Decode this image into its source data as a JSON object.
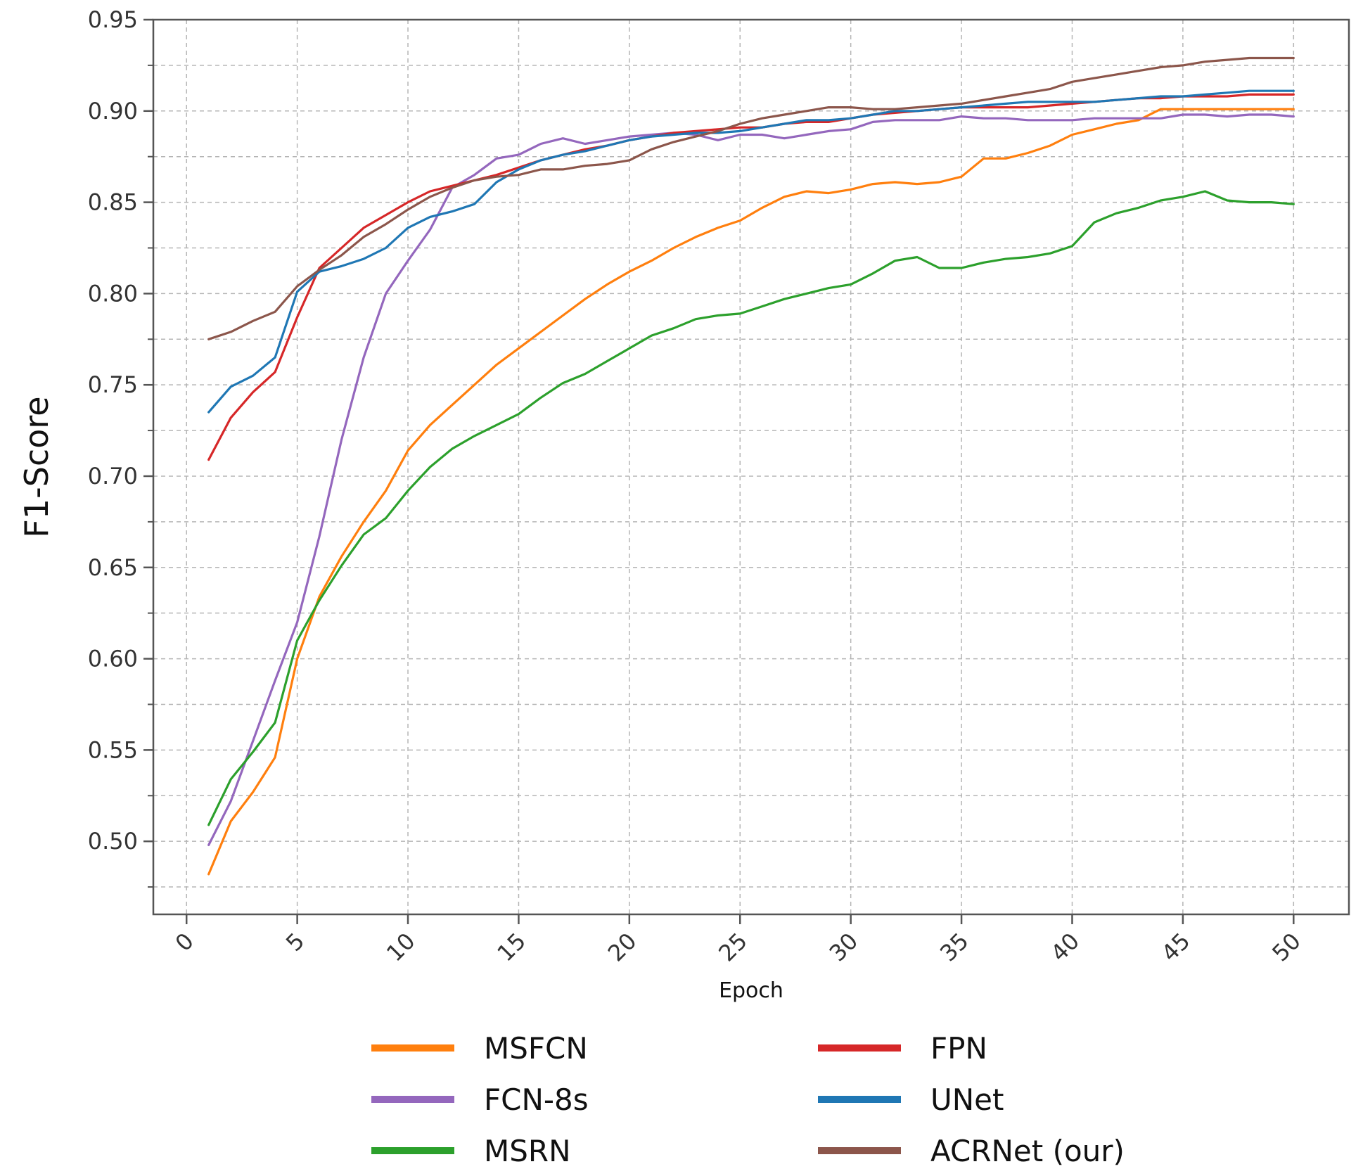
{
  "chart_data": {
    "type": "line",
    "title": "",
    "xlabel": "Epoch",
    "ylabel": "F1-Score",
    "xlim": [
      -1.5,
      52.5
    ],
    "ylim": [
      0.46,
      0.95
    ],
    "grid": true,
    "legend_position": "bottom",
    "x_ticks": [
      {
        "value": 0,
        "label": "0"
      },
      {
        "value": 5,
        "label": "5"
      },
      {
        "value": 10,
        "label": "10"
      },
      {
        "value": 15,
        "label": "15"
      },
      {
        "value": 20,
        "label": "20"
      },
      {
        "value": 25,
        "label": "25"
      },
      {
        "value": 30,
        "label": "30"
      },
      {
        "value": 35,
        "label": "35"
      },
      {
        "value": 40,
        "label": "40"
      },
      {
        "value": 45,
        "label": "45"
      },
      {
        "value": 50,
        "label": "50"
      }
    ],
    "y_ticks": [
      {
        "value": 0.5,
        "label": "0.50"
      },
      {
        "value": 0.55,
        "label": "0.55"
      },
      {
        "value": 0.6,
        "label": "0.60"
      },
      {
        "value": 0.65,
        "label": "0.65"
      },
      {
        "value": 0.7,
        "label": "0.70"
      },
      {
        "value": 0.75,
        "label": "0.75"
      },
      {
        "value": 0.8,
        "label": "0.80"
      },
      {
        "value": 0.85,
        "label": "0.85"
      },
      {
        "value": 0.9,
        "label": "0.90"
      },
      {
        "value": 0.95,
        "label": "0.95"
      }
    ],
    "x": [
      1,
      2,
      3,
      4,
      5,
      6,
      7,
      8,
      9,
      10,
      11,
      12,
      13,
      14,
      15,
      16,
      17,
      18,
      19,
      20,
      21,
      22,
      23,
      24,
      25,
      26,
      27,
      28,
      29,
      30,
      31,
      32,
      33,
      34,
      35,
      36,
      37,
      38,
      39,
      40,
      41,
      42,
      43,
      44,
      45,
      46,
      47,
      48,
      49,
      50
    ],
    "series": [
      {
        "name": "MSFCN",
        "color": "#ff7f0e",
        "values": [
          0.482,
          0.511,
          0.527,
          0.546,
          0.6,
          0.634,
          0.656,
          0.675,
          0.692,
          0.714,
          0.728,
          0.739,
          0.75,
          0.761,
          0.77,
          0.779,
          0.788,
          0.797,
          0.805,
          0.812,
          0.818,
          0.825,
          0.831,
          0.836,
          0.84,
          0.847,
          0.853,
          0.856,
          0.855,
          0.857,
          0.86,
          0.861,
          0.86,
          0.861,
          0.864,
          0.874,
          0.874,
          0.877,
          0.881,
          0.887,
          0.89,
          0.893,
          0.895,
          0.901,
          0.901,
          0.901,
          0.901,
          0.901,
          0.901,
          0.901
        ]
      },
      {
        "name": "FCN-8s",
        "color": "#9467bd",
        "values": [
          0.498,
          0.522,
          0.555,
          0.588,
          0.62,
          0.667,
          0.72,
          0.765,
          0.8,
          0.818,
          0.835,
          0.858,
          0.865,
          0.874,
          0.876,
          0.882,
          0.885,
          0.882,
          0.884,
          0.886,
          0.887,
          0.888,
          0.887,
          0.884,
          0.887,
          0.887,
          0.885,
          0.887,
          0.889,
          0.89,
          0.894,
          0.895,
          0.895,
          0.895,
          0.897,
          0.896,
          0.896,
          0.895,
          0.895,
          0.895,
          0.896,
          0.896,
          0.896,
          0.896,
          0.898,
          0.898,
          0.897,
          0.898,
          0.898,
          0.897
        ]
      },
      {
        "name": "MSRN",
        "color": "#2ca02c",
        "values": [
          0.509,
          0.534,
          0.549,
          0.565,
          0.61,
          0.632,
          0.651,
          0.668,
          0.677,
          0.692,
          0.705,
          0.715,
          0.722,
          0.728,
          0.734,
          0.743,
          0.751,
          0.756,
          0.763,
          0.77,
          0.777,
          0.781,
          0.786,
          0.788,
          0.789,
          0.793,
          0.797,
          0.8,
          0.803,
          0.805,
          0.811,
          0.818,
          0.82,
          0.814,
          0.814,
          0.817,
          0.819,
          0.82,
          0.822,
          0.826,
          0.839,
          0.844,
          0.847,
          0.851,
          0.853,
          0.856,
          0.851,
          0.85,
          0.85,
          0.849
        ]
      },
      {
        "name": "FPN",
        "color": "#d62728",
        "values": [
          0.709,
          0.732,
          0.746,
          0.757,
          0.787,
          0.814,
          0.825,
          0.836,
          0.843,
          0.85,
          0.856,
          0.859,
          0.862,
          0.865,
          0.869,
          0.873,
          0.876,
          0.879,
          0.881,
          0.884,
          0.886,
          0.888,
          0.889,
          0.89,
          0.891,
          0.891,
          0.893,
          0.894,
          0.894,
          0.896,
          0.898,
          0.899,
          0.9,
          0.901,
          0.902,
          0.902,
          0.902,
          0.902,
          0.903,
          0.904,
          0.905,
          0.906,
          0.907,
          0.907,
          0.908,
          0.908,
          0.908,
          0.909,
          0.909,
          0.909
        ]
      },
      {
        "name": "UNet",
        "color": "#1f77b4",
        "values": [
          0.735,
          0.749,
          0.755,
          0.765,
          0.801,
          0.812,
          0.815,
          0.819,
          0.825,
          0.836,
          0.842,
          0.845,
          0.849,
          0.861,
          0.868,
          0.873,
          0.876,
          0.878,
          0.881,
          0.884,
          0.886,
          0.887,
          0.888,
          0.888,
          0.889,
          0.891,
          0.893,
          0.895,
          0.895,
          0.896,
          0.898,
          0.9,
          0.9,
          0.901,
          0.902,
          0.903,
          0.904,
          0.905,
          0.905,
          0.905,
          0.905,
          0.906,
          0.907,
          0.908,
          0.908,
          0.909,
          0.91,
          0.911,
          0.911,
          0.911
        ]
      },
      {
        "name": "ACRNet (our)",
        "color": "#8c564b",
        "values": [
          0.775,
          0.779,
          0.785,
          0.79,
          0.804,
          0.813,
          0.821,
          0.831,
          0.838,
          0.846,
          0.853,
          0.858,
          0.862,
          0.864,
          0.865,
          0.868,
          0.868,
          0.87,
          0.871,
          0.873,
          0.879,
          0.883,
          0.886,
          0.889,
          0.893,
          0.896,
          0.898,
          0.9,
          0.902,
          0.902,
          0.901,
          0.901,
          0.902,
          0.903,
          0.904,
          0.906,
          0.908,
          0.91,
          0.912,
          0.916,
          0.918,
          0.92,
          0.922,
          0.924,
          0.925,
          0.927,
          0.928,
          0.929,
          0.929,
          0.929
        ]
      }
    ]
  }
}
